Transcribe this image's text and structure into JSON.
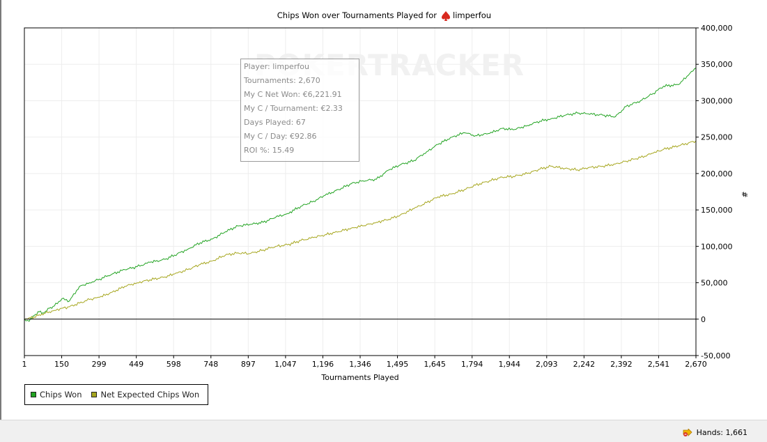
{
  "chart_data": {
    "type": "line",
    "title": "Chips Won over Tournaments Played for",
    "title_player": "limperfou",
    "xlabel": "Tournaments Played",
    "ylabel": "#",
    "xlim": [
      1,
      2670
    ],
    "ylim": [
      -50000,
      400000
    ],
    "x_ticks": [
      "1",
      "150",
      "299",
      "449",
      "598",
      "748",
      "897",
      "1,047",
      "1,196",
      "1,346",
      "1,495",
      "1,645",
      "1,794",
      "1,944",
      "2,093",
      "2,242",
      "2,392",
      "2,541",
      "2,670"
    ],
    "y_ticks": [
      {
        "value": -50000,
        "label": "-50,000"
      },
      {
        "value": 0,
        "label": "0"
      },
      {
        "value": 50000,
        "label": "50,000"
      },
      {
        "value": 100000,
        "label": "100,000"
      },
      {
        "value": 150000,
        "label": "150,000"
      },
      {
        "value": 200000,
        "label": "200,000"
      },
      {
        "value": 250000,
        "label": "250,000"
      },
      {
        "value": 300000,
        "label": "300,000"
      },
      {
        "value": 350000,
        "label": "350,000"
      },
      {
        "value": 400000,
        "label": "400,000"
      }
    ],
    "grid": true,
    "legend_position": "bottom-left",
    "series": [
      {
        "name": "Chips Won",
        "color": "#22a322",
        "x": [
          1,
          20,
          40,
          60,
          80,
          100,
          120,
          150,
          180,
          220,
          260,
          300,
          350,
          400,
          449,
          500,
          560,
          598,
          650,
          700,
          748,
          800,
          850,
          897,
          950,
          1000,
          1047,
          1100,
          1150,
          1196,
          1250,
          1300,
          1346,
          1400,
          1450,
          1495,
          1550,
          1600,
          1645,
          1700,
          1750,
          1794,
          1850,
          1900,
          1944,
          2000,
          2050,
          2093,
          2150,
          2200,
          2242,
          2300,
          2350,
          2392,
          2450,
          2500,
          2541,
          2600,
          2640,
          2670
        ],
        "y": [
          0,
          -3000,
          5000,
          10000,
          8000,
          15000,
          18000,
          28000,
          25000,
          45000,
          50000,
          55000,
          62000,
          68000,
          72000,
          78000,
          82000,
          88000,
          96000,
          105000,
          110000,
          120000,
          128000,
          130000,
          133000,
          140000,
          145000,
          155000,
          162000,
          170000,
          178000,
          186000,
          190000,
          192000,
          205000,
          212000,
          218000,
          230000,
          240000,
          250000,
          256000,
          252000,
          255000,
          262000,
          260000,
          266000,
          272000,
          275000,
          280000,
          283000,
          282000,
          280000,
          278000,
          292000,
          300000,
          310000,
          320000,
          322000,
          335000,
          345000
        ]
      },
      {
        "name": "Net Expected Chips Won",
        "color": "#a6a61e",
        "x": [
          1,
          20,
          40,
          60,
          80,
          100,
          120,
          150,
          180,
          220,
          260,
          300,
          350,
          400,
          449,
          500,
          560,
          598,
          650,
          700,
          748,
          800,
          850,
          897,
          950,
          1000,
          1047,
          1100,
          1150,
          1196,
          1250,
          1300,
          1346,
          1400,
          1450,
          1495,
          1550,
          1600,
          1645,
          1700,
          1750,
          1794,
          1850,
          1900,
          1944,
          2000,
          2050,
          2093,
          2150,
          2200,
          2242,
          2300,
          2350,
          2392,
          2450,
          2500,
          2541,
          2600,
          2640,
          2670
        ],
        "y": [
          0,
          2000,
          3000,
          6000,
          8000,
          10000,
          12000,
          15000,
          17000,
          22000,
          27000,
          30000,
          37000,
          45000,
          50000,
          54000,
          58000,
          62000,
          68000,
          75000,
          80000,
          88000,
          91000,
          90000,
          95000,
          100000,
          102000,
          108000,
          112000,
          116000,
          120000,
          125000,
          128000,
          133000,
          137000,
          143000,
          152000,
          160000,
          168000,
          172000,
          178000,
          184000,
          190000,
          195000,
          196000,
          200000,
          206000,
          210000,
          207000,
          205000,
          208000,
          210000,
          213000,
          217000,
          222000,
          228000,
          233000,
          238000,
          242000,
          245000
        ]
      }
    ]
  },
  "tooltip": {
    "player": "Player: limperfou",
    "tournaments": "Tournaments: 2,670",
    "net_won": "My C Net Won: €6,221.91",
    "per_tournament": "My C / Tournament: €2.33",
    "days_played": "Days Played: 67",
    "per_day": "My C / Day: €92.86",
    "roi": "ROI %: 15.49"
  },
  "legend": {
    "items": [
      {
        "label": "Chips Won",
        "color": "#22a322"
      },
      {
        "label": "Net Expected Chips Won",
        "color": "#a6a61e"
      }
    ]
  },
  "status": {
    "hands_label": "Hands: 1,661"
  }
}
